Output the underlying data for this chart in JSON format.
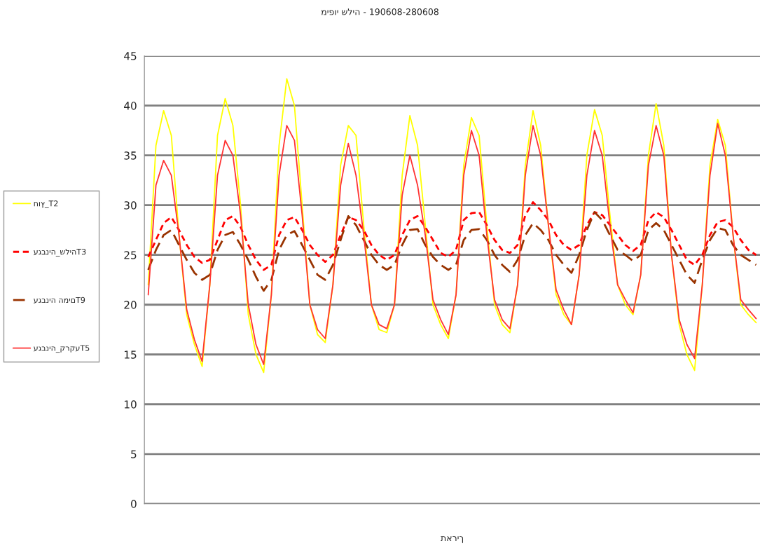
{
  "chart_data": {
    "type": "line",
    "title": "מיפוי שליה - 190608-280608",
    "xlabel": "תאריך",
    "categories": [
      null,
      null,
      null,
      null,
      null,
      null,
      null,
      null,
      null,
      null,
      null,
      null,
      null,
      null,
      null,
      null,
      null,
      null,
      null,
      null,
      null,
      null,
      null,
      null,
      null,
      null,
      null,
      null,
      null,
      null,
      null,
      null,
      null,
      null,
      null,
      null,
      null,
      null,
      null,
      null,
      null,
      null,
      null,
      null,
      null,
      null,
      null,
      null,
      null,
      null,
      null,
      null,
      null,
      null,
      null,
      null,
      null,
      null,
      null,
      null,
      null,
      null,
      null,
      null,
      null,
      null,
      null,
      null,
      null,
      null,
      null,
      null,
      null,
      null,
      null,
      null,
      null,
      null,
      null,
      null
    ],
    "ylim": [
      0,
      45
    ],
    "yticks": [
      0,
      5,
      10,
      15,
      20,
      25,
      30,
      35,
      40,
      45
    ],
    "grid": "y",
    "legend": "left",
    "marker": "none",
    "series": [
      {
        "name": "חוץ_T2",
        "color": "#ffff00",
        "line_style": "solid",
        "values": [
          22,
          36,
          39.5,
          37,
          27,
          19,
          16,
          13.8,
          22,
          37,
          40.7,
          38,
          30,
          19,
          15,
          13.2,
          21,
          36,
          42.7,
          40,
          30,
          20,
          17,
          16.2,
          22,
          34,
          38,
          37,
          28,
          20,
          17.5,
          17.2,
          20,
          33,
          39,
          36,
          28,
          20,
          18,
          16.6,
          21,
          34,
          38.8,
          37,
          28,
          20,
          18,
          17.2,
          22,
          34,
          39.5,
          36,
          28,
          21,
          19,
          18,
          23,
          35,
          39.6,
          37,
          29,
          22,
          20,
          19,
          23,
          35,
          40.2,
          36,
          25,
          18,
          15,
          13.4,
          22,
          34,
          38.6,
          36,
          27,
          20,
          19,
          18.2
        ]
      },
      {
        "name": "עגבניה_שליהT3",
        "color": "#ff0000",
        "line_style": "dotted",
        "values": [
          24.8,
          26.5,
          28.2,
          28.8,
          27.5,
          26,
          24.8,
          24.2,
          24.5,
          26.5,
          28.5,
          28.9,
          27.8,
          26,
          24.5,
          23.5,
          24,
          27,
          28.5,
          28.8,
          27.5,
          26,
          25,
          24.3,
          25,
          27,
          28.8,
          28.5,
          27.5,
          26,
          25,
          24.5,
          25,
          27,
          28.5,
          28.9,
          27.8,
          26.5,
          25.2,
          24.8,
          25.5,
          28.5,
          29.2,
          29.3,
          28,
          26.5,
          25.5,
          25.2,
          26,
          29,
          30.3,
          29.5,
          28.5,
          27,
          26,
          25.5,
          26,
          28,
          29.3,
          29,
          28,
          27,
          26,
          25.4,
          26,
          28.5,
          29.3,
          28.8,
          27.5,
          26,
          24.5,
          24,
          25,
          27,
          28.3,
          28.5,
          27.8,
          26.5,
          25.5,
          25
        ]
      },
      {
        "name": "עגבניה המיםT9",
        "color": "#993300",
        "line_style": "dashed",
        "values": [
          23.5,
          25.5,
          27,
          27.5,
          26,
          24.5,
          23.2,
          22.5,
          23,
          25.5,
          27,
          27.3,
          26,
          24.5,
          22.8,
          21.4,
          22.5,
          25.5,
          27,
          27.4,
          26,
          24.5,
          23,
          22.5,
          24,
          26.5,
          28.9,
          28,
          26.5,
          25,
          24,
          23.5,
          24,
          26,
          27.5,
          27.6,
          26,
          24.8,
          24,
          23.5,
          24,
          26.5,
          27.5,
          27.6,
          26.5,
          25,
          24,
          23.3,
          24.5,
          27,
          28.2,
          27.5,
          26.5,
          25,
          24,
          23.2,
          25,
          27.5,
          29.3,
          28.5,
          27,
          25.5,
          25,
          24.4,
          25,
          27.5,
          28.2,
          27.5,
          26,
          24.5,
          23,
          22.2,
          24.5,
          26.5,
          27.7,
          27.5,
          26,
          25,
          24.5,
          24
        ]
      },
      {
        "name": "עגבניה_קרקעT5",
        "color": "#ff3333",
        "line_style": "solid",
        "values": [
          21,
          32,
          34.5,
          33,
          27,
          19.5,
          16.5,
          14.3,
          22,
          33,
          36.5,
          35,
          29,
          20,
          16,
          14,
          21,
          33,
          38,
          36.5,
          29,
          20,
          17.5,
          16.6,
          22,
          32,
          36.2,
          33,
          27,
          20,
          18,
          17.6,
          20,
          31,
          35,
          32,
          27,
          20.5,
          18.5,
          17,
          21,
          33,
          37.5,
          35,
          27,
          20.5,
          18.5,
          17.6,
          22,
          33,
          38,
          35,
          28,
          21.5,
          19.5,
          18,
          23,
          33,
          37.5,
          35,
          28,
          22,
          20.5,
          19.2,
          23,
          34,
          38,
          35,
          25,
          18.5,
          16,
          14.6,
          22,
          33,
          38.2,
          35,
          27,
          20.5,
          19.5,
          18.6
        ]
      }
    ]
  }
}
